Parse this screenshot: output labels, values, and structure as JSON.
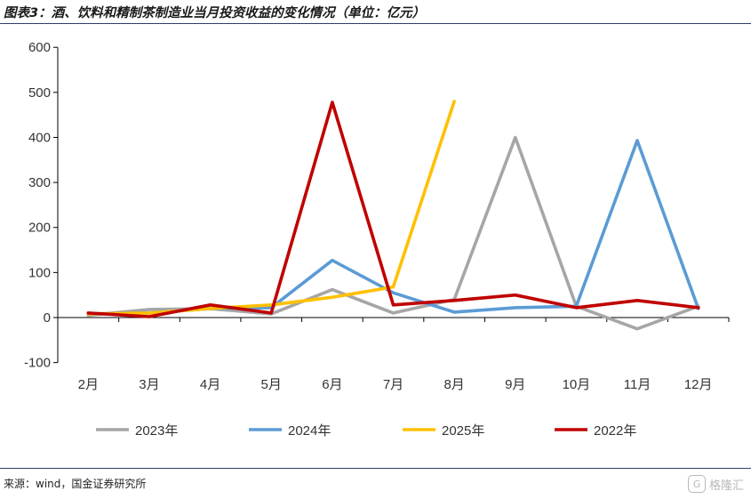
{
  "title": "图表3：酒、饮料和精制茶制造业当月投资收益的变化情况（单位：亿元）",
  "source": "来源：wind，国金证券研究所",
  "brand": {
    "label": "格隆汇",
    "icon": "g-logo-icon"
  },
  "chart_data": {
    "type": "line",
    "categories": [
      "2月",
      "3月",
      "4月",
      "5月",
      "6月",
      "7月",
      "8月",
      "9月",
      "10月",
      "11月",
      "12月"
    ],
    "ylim": [
      -100,
      600
    ],
    "yticks": [
      -100,
      0,
      100,
      200,
      300,
      400,
      500,
      600
    ],
    "grid": false,
    "legend": "bottom",
    "series": [
      {
        "name": "2023年",
        "color": "#a6a6a6",
        "values": [
          5,
          18,
          20,
          8,
          62,
          10,
          40,
          400,
          25,
          -25,
          25
        ]
      },
      {
        "name": "2024年",
        "color": "#5b9bd5",
        "values": [
          8,
          10,
          20,
          22,
          127,
          55,
          12,
          22,
          25,
          393,
          20
        ]
      },
      {
        "name": "2025年",
        "color": "#ffc000",
        "values": [
          8,
          10,
          20,
          28,
          45,
          68,
          480,
          null,
          null,
          null,
          null
        ]
      },
      {
        "name": "2022年",
        "color": "#c00000",
        "values": [
          10,
          2,
          28,
          10,
          478,
          28,
          38,
          50,
          22,
          38,
          22
        ]
      }
    ]
  }
}
